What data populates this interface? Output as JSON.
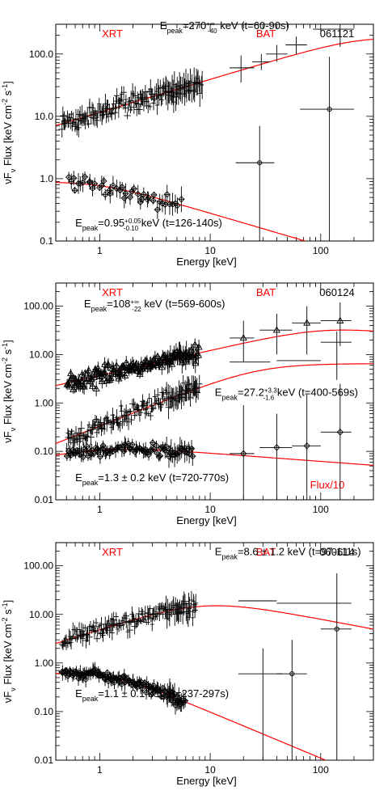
{
  "chart_data": [
    {
      "type": "scatter",
      "name": "061121",
      "labels": {
        "left": "XRT",
        "center": "BAT",
        "right": "061121"
      },
      "xlabel": "Energy [keV]",
      "ylabel": "νF_ν Flux [keV cm⁻² s⁻¹]",
      "ylabel_parts": {
        "main": "νF",
        "sub": "ν",
        "rest": " Flux [keV cm",
        "sup1": "-2",
        "mid": " s",
        "sup2": "-1",
        "end": "]"
      },
      "xlim": [
        0.4,
        300
      ],
      "ylim": [
        0.1,
        300
      ],
      "xticks": [
        "1",
        "10",
        "100"
      ],
      "yticks": [
        "0.1",
        "1.0",
        "10.0",
        "100.0"
      ],
      "ytick_values": [
        0.1,
        1,
        10,
        100
      ],
      "annotations": [
        {
          "pre": "E",
          "sub": "peak",
          "val": "=270",
          "sup": "+∞",
          "sub2": "-40",
          "post": " keV (t=60-90s)",
          "x": 3.5,
          "y": 250
        },
        {
          "pre": "E",
          "sub": "peak",
          "val": "=0.95",
          "sup": "+0.05",
          "sub2": "-0.10",
          "post": " keV (t=126-140s)",
          "x": 0.6,
          "y": 0.17
        }
      ],
      "models": [
        {
          "type": "band",
          "epeak": 270,
          "norm": 225,
          "alpha": 0.53,
          "beta": -0.2
        },
        {
          "type": "soft",
          "norm": 0.95,
          "epeak": 0.95,
          "alpha": 0.05,
          "beta": -0.52
        }
      ],
      "series": [
        {
          "kind": "xrt",
          "marker": "plus",
          "model": 0,
          "range": [
            0.45,
            8.5
          ],
          "n": 160,
          "scatter": 0.25
        },
        {
          "kind": "xrt",
          "marker": "diamond",
          "model": 1,
          "range": [
            0.5,
            5.5
          ],
          "n": 45,
          "scatter": 0.18
        }
      ],
      "bat_points": [
        {
          "x": 19,
          "y": 60,
          "xl": 15,
          "xh": 25,
          "yl": 35,
          "yh": 95
        },
        {
          "x": 29,
          "y": 75,
          "xl": 24,
          "xh": 35,
          "yl": 55,
          "yh": 100
        },
        {
          "x": 40,
          "y": 100,
          "xl": 32,
          "xh": 50,
          "yl": 75,
          "yh": 140
        },
        {
          "x": 60,
          "y": 140,
          "xl": 48,
          "xh": 75,
          "yl": 100,
          "yh": 190
        },
        {
          "x": 150,
          "y": 250,
          "xl": 85,
          "xh": 200,
          "yl": 130,
          "yh": 400
        },
        {
          "x": 28,
          "y": 1.8,
          "xl": 17,
          "xh": 38,
          "yl": 0.1,
          "yh": 7
        },
        {
          "x": 120,
          "y": 13,
          "xl": 65,
          "xh": 200,
          "yl": 0.1,
          "yh": 90
        }
      ],
      "bat_marker_idx": [
        5,
        6
      ]
    },
    {
      "type": "scatter",
      "name": "060124",
      "labels": {
        "left": "XRT",
        "center": "BAT",
        "right": "060124",
        "bottomright": "Flux/10"
      },
      "xlabel": "Energy [keV]",
      "ylabel": "νF_ν Flux [keV cm⁻² s⁻¹]",
      "ylabel_parts": {
        "main": "νF",
        "sub": "ν",
        "rest": " Flux [keV cm",
        "sup1": "-2",
        "mid": " s",
        "sup2": "-1",
        "end": "]"
      },
      "xlim": [
        0.4,
        300
      ],
      "ylim": [
        0.01,
        300
      ],
      "xticks": [
        "1",
        "10",
        "100"
      ],
      "yticks": [
        "0.01",
        "0.10",
        "1.00",
        "10.00",
        "100.00"
      ],
      "ytick_values": [
        0.01,
        0.1,
        1,
        10,
        100
      ],
      "annotations": [
        {
          "pre": "E",
          "sub": "peak",
          "val": "=108",
          "sup": "+∞",
          "sub2": "-22",
          "post": " keV (t=569-600s)",
          "x": 0.72,
          "y": 95
        },
        {
          "pre": "E",
          "sub": "peak",
          "val": "=27.2",
          "sup": "+3.3",
          "sub2": "-1.6",
          "post": " keV (t=400-569s)",
          "x": 11,
          "y": 1.4
        },
        {
          "pre": "E",
          "sub": "peak",
          "val": "=1.3 ± 0.2 keV (t=720-770s)",
          "sup": "",
          "sub2": "",
          "post": "",
          "x": 0.6,
          "y": 0.024
        }
      ],
      "models": [
        {
          "type": "band",
          "epeak": 108,
          "norm": 42,
          "alpha": 0.52,
          "beta": -0.25
        },
        {
          "type": "band",
          "epeak": 27.2,
          "norm": 6.5,
          "alpha": 0.9,
          "beta": 0.0
        },
        {
          "type": "soft",
          "norm": 0.13,
          "epeak": 1.3,
          "alpha": 0.35,
          "beta": -0.17
        }
      ],
      "series": [
        {
          "kind": "xrt",
          "marker": "triangle",
          "model": 0,
          "range": [
            0.5,
            8
          ],
          "n": 150,
          "scatter": 0.22
        },
        {
          "kind": "xrt",
          "marker": "plus",
          "model": 1,
          "range": [
            0.5,
            8
          ],
          "n": 150,
          "scatter": 0.25
        },
        {
          "kind": "xrt",
          "marker": "diamond",
          "model": 2,
          "range": [
            0.5,
            7
          ],
          "n": 90,
          "scatter": 0.18
        }
      ],
      "bat_points": [
        {
          "x": 20,
          "y": 22,
          "xl": 15,
          "xh": 25,
          "yl": 7,
          "yh": 50
        },
        {
          "x": 40,
          "y": 32,
          "xl": 28,
          "xh": 55,
          "yl": 10,
          "yh": 70
        },
        {
          "x": 75,
          "y": 45,
          "xl": 55,
          "xh": 100,
          "yl": 10,
          "yh": 100
        },
        {
          "x": 150,
          "y": 50,
          "xl": 100,
          "xh": 190,
          "yl": 15,
          "yh": 120
        },
        {
          "x": 140,
          "y": 18,
          "xl": 100,
          "xh": 190,
          "yl": 3,
          "yh": 30
        },
        {
          "x": 25,
          "y": 7,
          "xl": 15,
          "xh": 35,
          "yl": 7,
          "yh": 7
        },
        {
          "x": 70,
          "y": 7.5,
          "xl": 40,
          "xh": 100,
          "yl": 7.5,
          "yh": 7.5
        },
        {
          "x": 20,
          "y": 0.09,
          "xl": 15,
          "xh": 25,
          "yl": 0.01,
          "yh": 0.9
        },
        {
          "x": 40,
          "y": 0.12,
          "xl": 28,
          "xh": 55,
          "yl": 0.01,
          "yh": 0.6
        },
        {
          "x": 75,
          "y": 0.13,
          "xl": 55,
          "xh": 100,
          "yl": 0.01,
          "yh": 1.5
        },
        {
          "x": 150,
          "y": 0.25,
          "xl": 100,
          "xh": 190,
          "yl": 0.01,
          "yh": 2.5
        }
      ],
      "bat_marker_idx": [
        0,
        1,
        2,
        3,
        7,
        8,
        9,
        10
      ],
      "bat_marker_type": [
        "triangle",
        "triangle",
        "triangle",
        "triangle",
        "diamond",
        "diamond",
        "diamond",
        "diamond"
      ]
    },
    {
      "type": "scatter",
      "name": "060614",
      "labels": {
        "left": "XRT",
        "center": "BAT",
        "right": "060614"
      },
      "xlabel": "Energy [keV]",
      "ylabel": "νF_ν Flux [keV cm⁻² s⁻¹]",
      "ylabel_parts": {
        "main": "νF",
        "sub": "ν",
        "rest": " Flux [keV cm",
        "sup1": "-2",
        "mid": " s",
        "sup2": "-1",
        "end": "]"
      },
      "xlim": [
        0.4,
        300
      ],
      "ylim": [
        0.01,
        300
      ],
      "xticks": [
        "1",
        "10",
        "100"
      ],
      "yticks": [
        "0.01",
        "0.10",
        "1.00",
        "10.00",
        "100.00"
      ],
      "ytick_values": [
        0.01,
        0.1,
        1,
        10,
        100
      ],
      "annotations": [
        {
          "pre": "E",
          "sub": "peak",
          "val": "=8.6 ± 1.2 keV (t=97-111s)",
          "sup": "",
          "sub2": "",
          "post": "",
          "x": 11,
          "y": 165
        },
        {
          "pre": "E",
          "sub": "peak",
          "val": "=1.1 ± 0.1 keV (t=237-297s)",
          "sup": "",
          "sub2": "",
          "post": "",
          "x": 0.6,
          "y": 0.2
        }
      ],
      "models": [
        {
          "type": "band",
          "epeak": 8.6,
          "norm": 23,
          "alpha": 0.72,
          "beta": -0.43
        },
        {
          "type": "soft",
          "norm": 0.8,
          "epeak": 1.1,
          "alpha": 0.2,
          "beta": -0.95
        }
      ],
      "series": [
        {
          "kind": "xrt",
          "marker": "plus",
          "model": 0,
          "range": [
            0.45,
            7.5
          ],
          "n": 150,
          "scatter": 0.25
        },
        {
          "kind": "xrt",
          "marker": "diamond",
          "model": 1,
          "range": [
            0.45,
            6
          ],
          "n": 120,
          "scatter": 0.15
        }
      ],
      "bat_points": [
        {
          "x": 28,
          "y": 19,
          "xl": 18,
          "xh": 40,
          "yl": 19,
          "yh": 19
        },
        {
          "x": 90,
          "y": 17,
          "xl": 40,
          "xh": 190,
          "yl": 17,
          "yh": 17
        },
        {
          "x": 30,
          "y": 0.6,
          "xl": 18,
          "xh": 45,
          "yl": 0.01,
          "yh": 2
        },
        {
          "x": 55,
          "y": 0.6,
          "xl": 40,
          "xh": 75,
          "yl": 0.01,
          "yh": 3
        },
        {
          "x": 140,
          "y": 5,
          "xl": 100,
          "xh": 190,
          "yl": 0.01,
          "yh": 70
        }
      ],
      "bat_marker_idx": [
        3,
        4
      ]
    }
  ]
}
